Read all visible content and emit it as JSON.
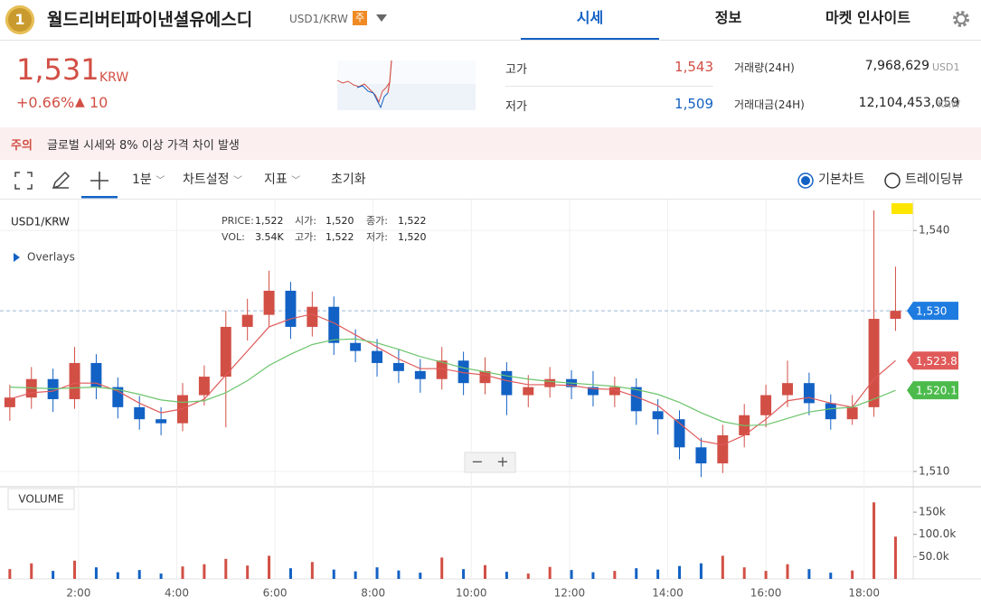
{
  "header": {
    "rank": "1",
    "title": "월드리버티파이낸셜유에스디",
    "pair": "USD1/KRW",
    "badge": "주"
  },
  "tabs": [
    "시세",
    "정보",
    "마켓 인사이트"
  ],
  "price": {
    "value": "1,531",
    "unit": "KRW",
    "change_pct": "+0.66%",
    "change_arrow": "▲",
    "change": "10"
  },
  "stats": [
    {
      "label": "고가",
      "value": "1,543"
    },
    {
      "label": "저가",
      "value": "1,509"
    },
    {
      "label": "거래량(24H)",
      "value": "7,968,629",
      "unit": "USD1"
    },
    {
      "label": "거래대금(24H)",
      "value": "12,104,453,059",
      "unit": "KRW"
    }
  ],
  "notice": {
    "label": "주의",
    "text": "글로벌 시세와 8% 이상 가격 차이 발생"
  },
  "toolbar": {
    "interval": "1분",
    "settings": "차트설정",
    "indicators": "지표",
    "reset": "초기화",
    "options": [
      "기본차트",
      "트레이딩뷰"
    ]
  },
  "chart_data": {
    "type": "candlestick",
    "title": "USD1/KRW",
    "overlays_label": "Overlays",
    "info": [
      [
        {
          "label": "PRICE:",
          "value": "1,522"
        },
        {
          "label": "시가:",
          "value": "1,520"
        },
        {
          "label": "종가:",
          "value": "1,522"
        }
      ],
      [
        {
          "label": "VOL:",
          "value": "3.54K"
        },
        {
          "label": "고가:",
          "value": "1,522"
        },
        {
          "label": "저가:",
          "value": "1,520"
        }
      ]
    ],
    "x": [
      0.6,
      1.04,
      1.48,
      1.92,
      2.36,
      2.8,
      3.24,
      3.68,
      4.12,
      4.56,
      5.0,
      5.44,
      5.88,
      6.32,
      6.76,
      7.2,
      7.64,
      8.08,
      8.52,
      8.96,
      9.4,
      9.84,
      10.28,
      10.72,
      11.16,
      11.6,
      12.04,
      12.48,
      12.92,
      13.36,
      13.8,
      14.24,
      14.68,
      15.12,
      15.56,
      16.0,
      16.44,
      16.88,
      17.32,
      17.76,
      18.2,
      18.64
    ],
    "xlim": [
      0.4,
      19.0
    ],
    "xticks": [
      {
        "value": 2,
        "label": "2:00"
      },
      {
        "value": 4,
        "label": "4:00"
      },
      {
        "value": 6,
        "label": "6:00"
      },
      {
        "value": 8,
        "label": "8:00"
      },
      {
        "value": 10,
        "label": "10:00"
      },
      {
        "value": 12,
        "label": "12:00"
      },
      {
        "value": 14,
        "label": "14:00"
      },
      {
        "value": 16,
        "label": "16:00"
      },
      {
        "value": 18,
        "label": "18:00"
      }
    ],
    "open": [
      1518.0,
      1519.2,
      1521.5,
      1519.0,
      1523.5,
      1520.5,
      1518.0,
      1516.5,
      1516.0,
      1519.5,
      1521.8,
      1528.0,
      1529.5,
      1532.5,
      1528.0,
      1530.5,
      1526.0,
      1525.0,
      1523.5,
      1522.5,
      1521.5,
      1523.8,
      1521.0,
      1522.5,
      1519.5,
      1520.5,
      1521.5,
      1520.5,
      1519.5,
      1520.5,
      1517.5,
      1516.5,
      1513.0,
      1511.0,
      1514.5,
      1517.0,
      1519.5,
      1521.0,
      1518.5,
      1516.5,
      1518.0,
      1529.0
    ],
    "high": [
      1520.8,
      1523.0,
      1522.8,
      1525.5,
      1524.6,
      1521.7,
      1519.4,
      1518.0,
      1521.0,
      1523.2,
      1530.0,
      1531.5,
      1535.0,
      1533.6,
      1532.4,
      1531.8,
      1527.7,
      1526.5,
      1525.2,
      1524.0,
      1525.5,
      1524.9,
      1524.2,
      1523.6,
      1522.0,
      1523.0,
      1522.6,
      1522.5,
      1521.8,
      1521.6,
      1519.0,
      1517.6,
      1514.2,
      1515.8,
      1518.4,
      1520.8,
      1523.8,
      1522.3,
      1519.6,
      1519.5,
      1542.5,
      1535.5
    ],
    "low": [
      1516.3,
      1517.8,
      1517.4,
      1517.8,
      1519.0,
      1516.6,
      1515.2,
      1514.5,
      1515.0,
      1518.2,
      1515.5,
      1526.3,
      1528.0,
      1526.5,
      1526.8,
      1524.5,
      1523.6,
      1521.8,
      1521.0,
      1519.8,
      1520.2,
      1519.5,
      1519.6,
      1517.0,
      1518.0,
      1519.2,
      1519.0,
      1518.1,
      1518.0,
      1515.8,
      1514.6,
      1511.5,
      1509.3,
      1509.8,
      1513.0,
      1515.5,
      1518.0,
      1517.0,
      1515.2,
      1515.8,
      1516.8,
      1527.5
    ],
    "close": [
      1519.2,
      1521.5,
      1519.0,
      1523.5,
      1520.5,
      1518.0,
      1516.5,
      1516.0,
      1519.5,
      1521.8,
      1528.0,
      1529.5,
      1532.5,
      1528.0,
      1530.5,
      1526.0,
      1525.0,
      1523.5,
      1522.5,
      1521.5,
      1523.8,
      1521.0,
      1522.5,
      1519.5,
      1520.5,
      1521.5,
      1520.5,
      1519.5,
      1520.5,
      1517.5,
      1516.5,
      1513.0,
      1511.0,
      1514.5,
      1517.0,
      1519.5,
      1521.0,
      1518.5,
      1516.5,
      1518.0,
      1529.0,
      1530.0
    ],
    "up_color": "#d24f45",
    "down_color": "#1261c4",
    "ylim": [
      1508.2,
      1543.4
    ],
    "yticks": [
      {
        "value": 1510,
        "label": "1,510"
      },
      {
        "value": 1540,
        "label": "1,540"
      }
    ],
    "moving_averages": [
      {
        "color": "#e05a5a",
        "values": [
          1519.0,
          1519.8,
          1520.0,
          1521.0,
          1521.0,
          1520.0,
          1518.5,
          1517.3,
          1517.8,
          1519.0,
          1522.0,
          1525.0,
          1528.0,
          1529.0,
          1529.6,
          1528.5,
          1527.0,
          1525.5,
          1524.0,
          1522.8,
          1522.8,
          1522.3,
          1522.0,
          1521.3,
          1520.8,
          1520.8,
          1520.7,
          1520.3,
          1520.2,
          1519.3,
          1518.2,
          1516.0,
          1513.8,
          1513.3,
          1514.5,
          1516.5,
          1518.8,
          1519.2,
          1518.5,
          1518.0,
          1521.5,
          1523.8
        ]
      },
      {
        "color": "#6cc46c",
        "values": [
          1520.5,
          1520.4,
          1520.3,
          1520.4,
          1520.5,
          1520.2,
          1519.6,
          1518.9,
          1518.6,
          1518.8,
          1519.8,
          1521.3,
          1523.2,
          1524.6,
          1525.8,
          1526.4,
          1526.5,
          1526.0,
          1525.2,
          1524.3,
          1523.6,
          1522.9,
          1522.4,
          1521.9,
          1521.5,
          1521.2,
          1521.0,
          1520.8,
          1520.6,
          1520.2,
          1519.6,
          1518.6,
          1517.3,
          1516.2,
          1515.7,
          1515.8,
          1516.6,
          1517.4,
          1517.8,
          1518.0,
          1519.0,
          1520.1
        ]
      }
    ],
    "price_tags": [
      {
        "value": 1530,
        "label": "1,530",
        "color": "#1e7be0"
      },
      {
        "value": 1523.8,
        "label": "1,523.8",
        "color": "#e05a5a"
      },
      {
        "value": 1520.1,
        "label": "1,520.1",
        "color": "#4cbb4c"
      }
    ],
    "volume": {
      "label": "VOLUME",
      "values": [
        22000,
        35000,
        18000,
        41000,
        26000,
        15000,
        20000,
        12000,
        28000,
        33000,
        45000,
        30000,
        52000,
        24000,
        38000,
        21000,
        17000,
        26000,
        19000,
        14000,
        48000,
        22000,
        31000,
        16000,
        12000,
        27000,
        20000,
        15000,
        18000,
        24000,
        21000,
        29000,
        35000,
        52000,
        26000,
        18000,
        33000,
        22000,
        14000,
        19000,
        172000,
        95000
      ],
      "ylim": [
        0,
        205000
      ],
      "yticks": [
        {
          "value": 50000,
          "label": "50.0k"
        },
        {
          "value": 100000,
          "label": "100.0k"
        },
        {
          "value": 150000,
          "label": "150k"
        }
      ]
    },
    "zoom": [
      "−",
      "+"
    ]
  }
}
